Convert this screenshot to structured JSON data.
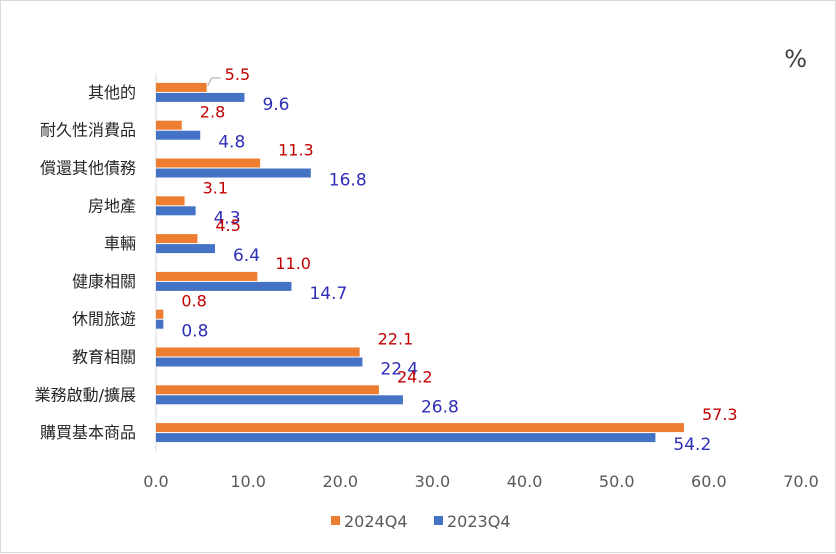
{
  "chart_data": {
    "type": "bar",
    "orientation": "horizontal",
    "unit_label": "%",
    "categories": [
      "其他的",
      "耐久性消費品",
      "償還其他債務",
      "房地產",
      "車輛",
      "健康相關",
      "休閒旅遊",
      "教育相關",
      "業務啟動/擴展",
      "購買基本商品"
    ],
    "series": [
      {
        "name": "2024Q4",
        "color": "#ED7D31",
        "label_color": "#C00000",
        "values": [
          5.5,
          2.8,
          11.3,
          3.1,
          4.5,
          11.0,
          0.8,
          22.1,
          24.2,
          57.3
        ],
        "labels": [
          "5.5",
          "2.8",
          "11.3",
          "3.1",
          "4.5",
          "11.0",
          "0.8",
          "22.1",
          "24.2",
          "57.3"
        ]
      },
      {
        "name": "2023Q4",
        "color": "#4472C4",
        "label_color": "#2E2EB8",
        "values": [
          9.6,
          4.8,
          16.8,
          4.3,
          6.4,
          14.7,
          0.8,
          22.4,
          26.8,
          54.2
        ],
        "labels": [
          "9.6",
          "4.8",
          "16.8",
          "4.3",
          "6.4",
          "14.7",
          "0.8",
          "22.4",
          "26.8",
          "54.2"
        ]
      }
    ],
    "xlim": [
      0,
      70
    ],
    "x_ticks": [
      "0.0",
      "10.0",
      "20.0",
      "30.0",
      "40.0",
      "50.0",
      "60.0",
      "70.0"
    ],
    "grid": false,
    "legend": "bottom",
    "legend_entries": [
      "2024Q4",
      "2023Q4"
    ]
  }
}
